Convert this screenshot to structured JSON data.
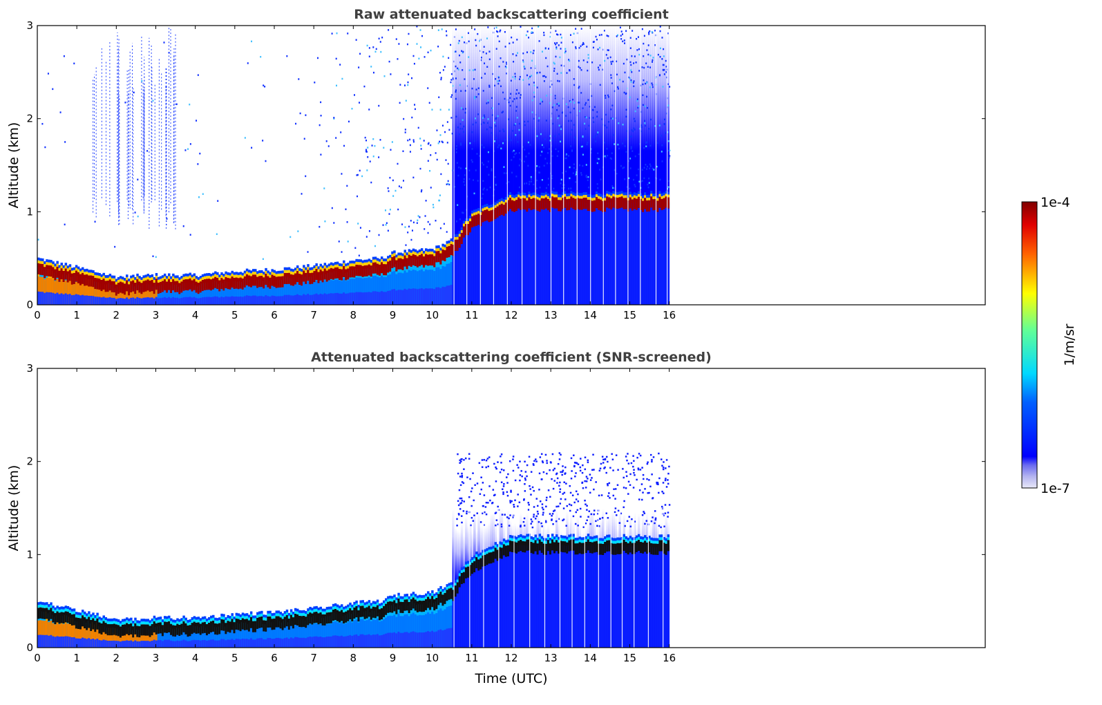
{
  "chart_data": [
    {
      "type": "heatmap",
      "title": "Raw attenuated backscattering coefficient",
      "xlabel": "",
      "ylabel": "Altitude (km)",
      "xlim": [
        0,
        24
      ],
      "ylim": [
        0,
        3
      ],
      "x_ticks": [
        "0",
        "1",
        "2",
        "3",
        "4",
        "5",
        "6",
        "7",
        "8",
        "9",
        "10",
        "11",
        "12",
        "13",
        "14",
        "15",
        "16"
      ],
      "y_ticks": [
        "0",
        "1",
        "2",
        "3"
      ],
      "data_extent_hours": [
        0,
        16
      ],
      "boundary_layer_top_km": {
        "time_utc": [
          0,
          0.5,
          1,
          1.5,
          2,
          3,
          4,
          5,
          6,
          7,
          8,
          8.7,
          9,
          10,
          10.5,
          10.8,
          11,
          12
        ],
        "altitude_km": [
          0.4,
          0.35,
          0.3,
          0.25,
          0.2,
          0.22,
          0.22,
          0.26,
          0.28,
          0.32,
          0.38,
          0.4,
          0.46,
          0.5,
          0.6,
          0.8,
          0.9,
          1.1
        ]
      },
      "noise": "high",
      "grid": false
    },
    {
      "type": "heatmap",
      "title": "Attenuated backscattering coefficient (SNR-screened)",
      "xlabel": "Time (UTC)",
      "ylabel": "Altitude (km)",
      "xlim": [
        0,
        24
      ],
      "ylim": [
        0,
        3
      ],
      "x_ticks": [
        "0",
        "1",
        "2",
        "3",
        "4",
        "5",
        "6",
        "7",
        "8",
        "9",
        "10",
        "11",
        "12",
        "13",
        "14",
        "15",
        "16"
      ],
      "y_ticks": [
        "0",
        "1",
        "2",
        "3"
      ],
      "data_extent_hours": [
        0,
        16
      ],
      "boundary_layer_top_km": {
        "time_utc": [
          0,
          0.5,
          1,
          1.5,
          2,
          3,
          4,
          5,
          6,
          7,
          8,
          8.7,
          9,
          10,
          10.5,
          10.8,
          11,
          12
        ],
        "altitude_km": [
          0.4,
          0.35,
          0.3,
          0.25,
          0.2,
          0.22,
          0.22,
          0.26,
          0.28,
          0.32,
          0.38,
          0.4,
          0.46,
          0.5,
          0.6,
          0.8,
          0.9,
          1.1
        ]
      },
      "noise": "screened",
      "grid": false
    }
  ],
  "colorbar": {
    "label": "1/m/sr",
    "max_label": "1e-4",
    "min_label": "1e-7",
    "colormap": "jet",
    "scale": "log"
  }
}
